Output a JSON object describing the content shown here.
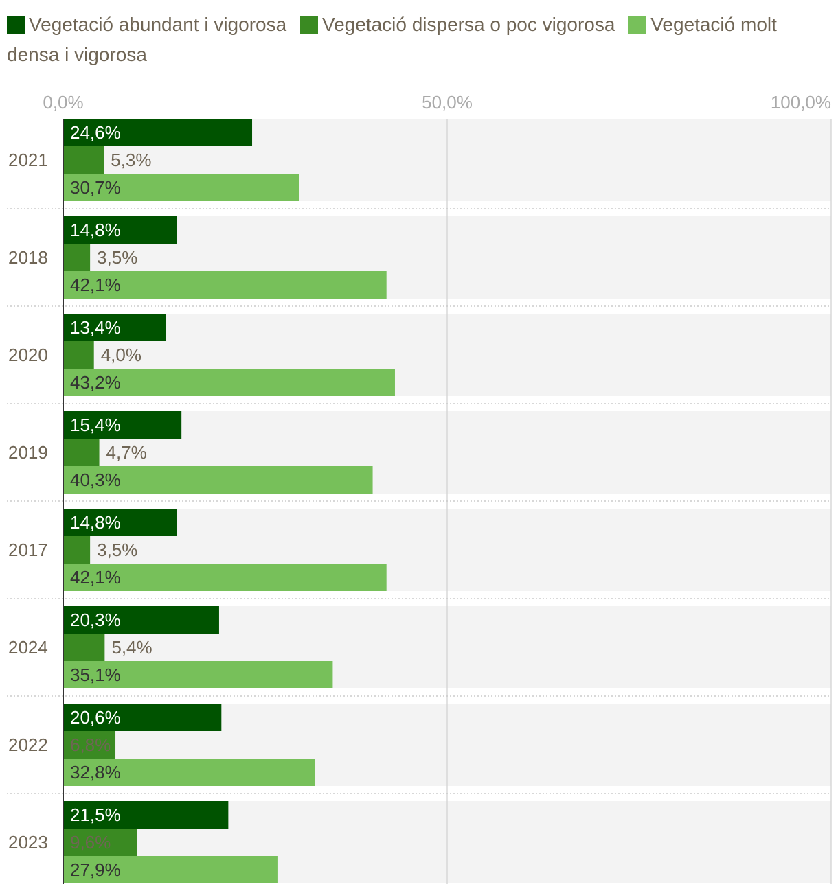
{
  "chart_data": {
    "type": "bar",
    "orientation": "horizontal",
    "title": "",
    "xlabel": "",
    "ylabel": "",
    "xlim": [
      0,
      100
    ],
    "ticks": [
      {
        "value": 0,
        "label": "0,0%"
      },
      {
        "value": 50,
        "label": "50,0%"
      },
      {
        "value": 100,
        "label": "100,0%"
      }
    ],
    "categories": [
      "2021",
      "2018",
      "2020",
      "2019",
      "2017",
      "2024",
      "2022",
      "2023"
    ],
    "series": [
      {
        "name": "Vegetació abundant i vigorosa",
        "color": "#005300",
        "label_color": "#ffffff",
        "values": [
          24.6,
          14.8,
          13.4,
          15.4,
          14.8,
          20.3,
          20.6,
          21.5
        ],
        "labels": [
          "24,6%",
          "14,8%",
          "13,4%",
          "15,4%",
          "14,8%",
          "20,3%",
          "20,6%",
          "21,5%"
        ]
      },
      {
        "name": "Vegetació dispersa o poc vigorosa",
        "color": "#3a8a22",
        "label_color": "#6f6555",
        "values": [
          5.3,
          3.5,
          4.0,
          4.7,
          3.5,
          5.4,
          6.8,
          9.6
        ],
        "labels": [
          "5,3%",
          "3,5%",
          "4,0%",
          "4,7%",
          "3,5%",
          "5,4%",
          "6,8%",
          "9,6%"
        ]
      },
      {
        "name": "Vegetació molt densa i vigorosa",
        "color": "#77c05a",
        "label_color": "#333333",
        "values": [
          30.7,
          42.1,
          43.2,
          40.3,
          42.1,
          35.1,
          32.8,
          27.9
        ],
        "labels": [
          "30,7%",
          "42,1%",
          "43,2%",
          "40,3%",
          "42,1%",
          "35,1%",
          "32,8%",
          "27,9%"
        ]
      }
    ],
    "legend": "top",
    "grid": true
  }
}
